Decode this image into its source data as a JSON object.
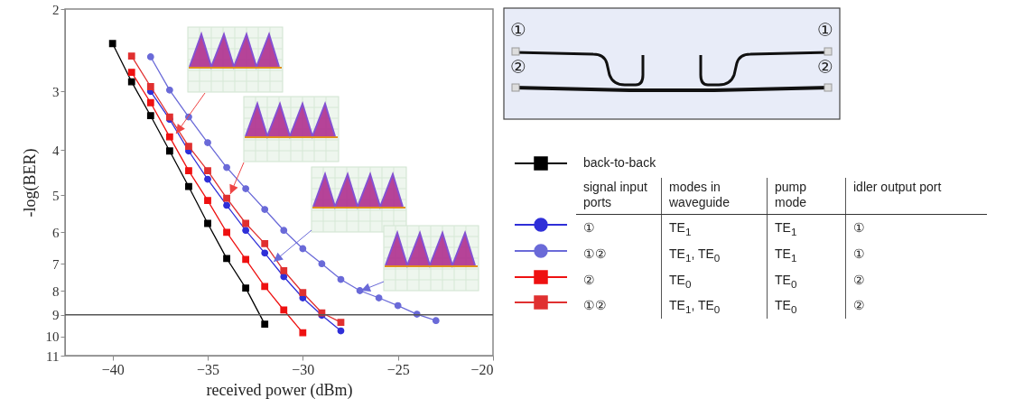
{
  "chart_data": {
    "type": "line",
    "xlabel": "received power (dBm)",
    "ylabel": "-log(BER)",
    "log": "y",
    "xlim": [
      -42.5,
      -20
    ],
    "xticks": [
      -40,
      -35,
      -30,
      -25,
      -20
    ],
    "ylim": [
      11,
      2
    ],
    "yticks": [
      2,
      3,
      4,
      5,
      6,
      7,
      8,
      9,
      10,
      11
    ],
    "grid": false,
    "legend": "right",
    "line_style": "solid",
    "ref_lines": [
      {
        "axis": "y",
        "value": 9,
        "color": "#555555"
      }
    ],
    "series": [
      {
        "name": "back-to-back",
        "color": "#000000",
        "marker": "square",
        "x": [
          -40,
          -39,
          -38,
          -37,
          -36,
          -35,
          -34,
          -33,
          -32
        ],
        "values": [
          2.37,
          2.86,
          3.38,
          4.02,
          4.79,
          5.74,
          6.82,
          7.89,
          9.42
        ]
      },
      {
        "color": "#2f2fd8",
        "marker": "circle",
        "x": [
          -38,
          -37,
          -36,
          -35,
          -34,
          -33,
          -32,
          -31,
          -30,
          -29,
          -28
        ],
        "values": [
          3.0,
          3.44,
          4.02,
          4.62,
          5.25,
          5.94,
          6.64,
          7.46,
          8.28,
          9.02,
          9.74
        ]
      },
      {
        "color": "#6a6ad8",
        "marker": "circle",
        "x": [
          -38,
          -37,
          -36,
          -35,
          -34,
          -33,
          -32,
          -31,
          -30,
          -29,
          -28,
          -27,
          -26,
          -25,
          -24,
          -23
        ],
        "values": [
          2.53,
          2.98,
          3.4,
          3.86,
          4.36,
          4.84,
          5.36,
          5.94,
          6.5,
          7.0,
          7.56,
          7.99,
          8.28,
          8.6,
          8.97,
          9.26
        ]
      },
      {
        "color": "#ee1111",
        "marker": "square",
        "x": [
          -39,
          -38,
          -37,
          -36,
          -35,
          -34,
          -33,
          -32,
          -31,
          -30
        ],
        "values": [
          2.73,
          3.17,
          3.75,
          4.43,
          5.13,
          6.0,
          6.85,
          7.83,
          8.79,
          9.83
        ]
      },
      {
        "color": "#e03030",
        "marker": "square",
        "x": [
          -39,
          -38,
          -37,
          -36,
          -35,
          -34,
          -33,
          -32,
          -31,
          -30,
          -29,
          -28
        ],
        "values": [
          2.52,
          2.93,
          3.4,
          3.93,
          4.43,
          5.07,
          5.74,
          6.34,
          7.24,
          8.07,
          8.91,
          9.34
        ]
      }
    ],
    "annotations": [
      "signal input ports",
      "modes in waveguide",
      "pump mode",
      "idler output port",
      "①",
      "TE$_{1}$",
      "TE$_{1}$",
      "①",
      "①②",
      "TE$_{1}$, TE$_{0}$",
      "TE$_{1}$",
      "①",
      "②",
      "TE$_{0}$",
      "TE$_{0}$",
      "②",
      "①②",
      "TE$_{1}$, TE$_{0}$",
      "TE$_{0}$",
      "②",
      "①",
      "①",
      "②",
      "②"
    ]
  }
}
